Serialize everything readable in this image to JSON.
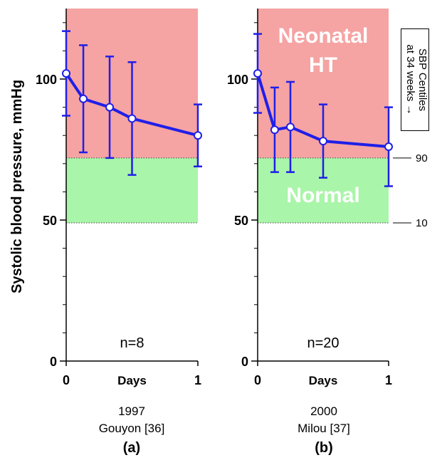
{
  "figure": {
    "ylabel": "Systolic blood pressure, mmHg",
    "centile_note": {
      "line1": "SBP Centiles",
      "line2": "at 34 weeks",
      "arrow": "→"
    },
    "centile_labels": [
      {
        "label": "90",
        "value": 72
      },
      {
        "label": "10",
        "value": 49
      }
    ]
  },
  "chart_data": [
    {
      "type": "line",
      "panel": "(a)",
      "caption_year": "1997",
      "caption_ref": "Gouyon [36]",
      "xlabel": "Days",
      "x_tick_labels": [
        "0",
        "1"
      ],
      "y_tick_labels": [
        "0",
        "50",
        "100"
      ],
      "xlim": [
        0,
        1
      ],
      "ylim": [
        0,
        125
      ],
      "y_major_ticks": [
        0,
        50,
        100
      ],
      "y_minor_step": 10,
      "annotation": "n=8",
      "regions": [
        {
          "label": "",
          "from": 72,
          "to": 125,
          "color": "#f5a3a3"
        },
        {
          "label": "",
          "from": 49,
          "to": 72,
          "color": "#a9f5a9"
        }
      ],
      "series": [
        {
          "color": "#1f1fe8",
          "x": [
            0,
            0.13,
            0.33,
            0.5,
            1.0
          ],
          "y": [
            102,
            93,
            90,
            86,
            80
          ],
          "error_low": [
            87,
            74,
            72,
            66,
            69
          ],
          "error_high": [
            117,
            112,
            108,
            106,
            91
          ]
        }
      ]
    },
    {
      "type": "line",
      "panel": "(b)",
      "caption_year": "2000",
      "caption_ref": "Milou [37]",
      "xlabel": "Days",
      "x_tick_labels": [
        "0",
        "1"
      ],
      "y_tick_labels": [
        "0",
        "50",
        "100"
      ],
      "xlim": [
        0,
        1
      ],
      "ylim": [
        0,
        125
      ],
      "y_major_ticks": [
        0,
        50,
        100
      ],
      "y_minor_step": 10,
      "annotation": "n=20",
      "regions": [
        {
          "label": "Neonatal HT",
          "from": 72,
          "to": 125,
          "color": "#f5a3a3"
        },
        {
          "label": "Normal",
          "from": 49,
          "to": 72,
          "color": "#a9f5a9"
        }
      ],
      "series": [
        {
          "color": "#1f1fe8",
          "x": [
            0,
            0.13,
            0.25,
            0.5,
            1.0
          ],
          "y": [
            102,
            82,
            83,
            78,
            76
          ],
          "error_low": [
            88,
            67,
            67,
            65,
            62
          ],
          "error_high": [
            116,
            97,
            99,
            91,
            90
          ]
        }
      ]
    }
  ]
}
